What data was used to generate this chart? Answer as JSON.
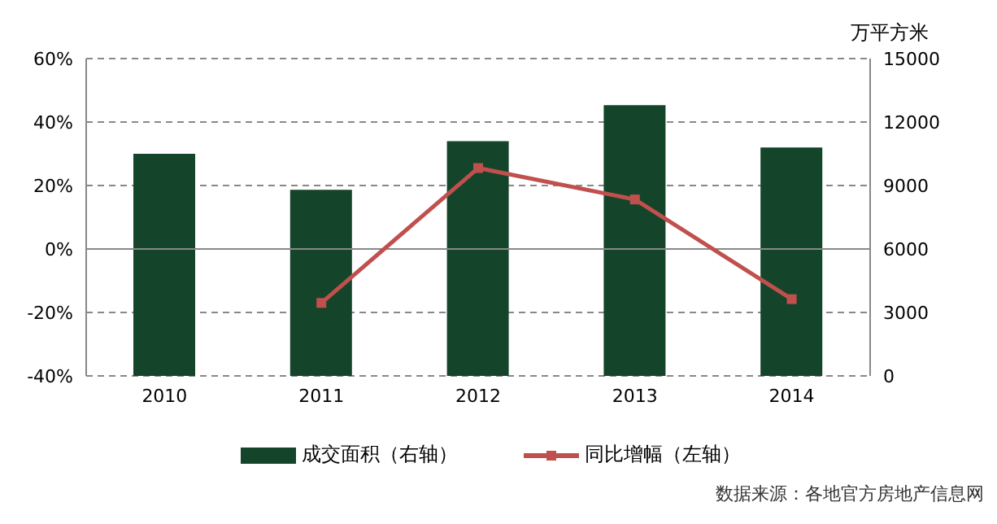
{
  "chart_data": {
    "type": "bar",
    "categories": [
      "2010",
      "2011",
      "2012",
      "2013",
      "2014"
    ],
    "series": [
      {
        "name": "成交面积（右轴）",
        "axis": "y2",
        "color": "#14452a",
        "values": [
          10500,
          8800,
          11100,
          12800,
          10800
        ]
      },
      {
        "name": "同比增幅（左轴）",
        "type": "line",
        "axis": "y",
        "color": "#c0504d",
        "marker": "square",
        "values": [
          null,
          -17,
          25.5,
          15.6,
          -15.8
        ]
      }
    ],
    "ylim": [
      -40,
      60
    ],
    "yticks": [
      {
        "value": -40,
        "label": "-40%"
      },
      {
        "value": -20,
        "label": "-20%"
      },
      {
        "value": 0,
        "label": "0%"
      },
      {
        "value": 20,
        "label": "20%"
      },
      {
        "value": 40,
        "label": "40%"
      },
      {
        "value": 60,
        "label": "60%"
      }
    ],
    "y2lim": [
      0,
      15000
    ],
    "y2ticks": [
      0,
      3000,
      6000,
      9000,
      12000,
      15000
    ],
    "y2label": "万平方米",
    "grid": "y",
    "legend": "bottom",
    "annotations": [
      "数据来源：各地官方房地产信息网"
    ]
  }
}
